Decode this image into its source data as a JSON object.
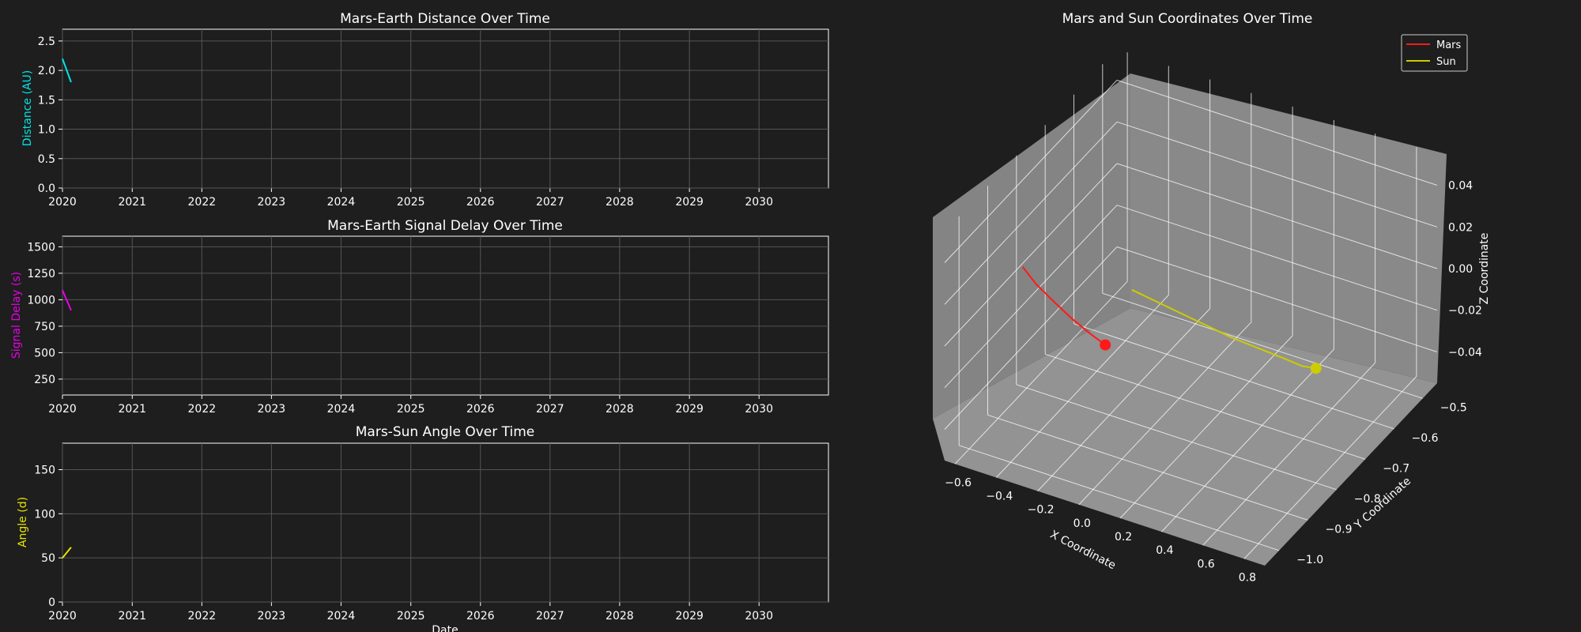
{
  "theme": {
    "background": "#1e1e1e",
    "foreground": "#ffffff",
    "grid": "#555555",
    "pane_color": "#8a8a8a"
  },
  "chart_data": [
    {
      "type": "line",
      "title": "Mars-Earth Distance Over Time",
      "xlabel": "",
      "ylabel": "Distance (AU)",
      "ylabel_color": "#00e5e5",
      "xlim": [
        "2020-01-01",
        "2030-12-31"
      ],
      "ylim": [
        0,
        2.7
      ],
      "xticks": [
        "2020",
        "2021",
        "2022",
        "2023",
        "2024",
        "2025",
        "2026",
        "2027",
        "2028",
        "2029",
        "2030"
      ],
      "yticks": [
        "0.0",
        "0.5",
        "1.0",
        "1.5",
        "2.0",
        "2.5"
      ],
      "grid": true,
      "series": [
        {
          "color": "#00e5e5",
          "x": [
            "2020-01-01",
            "2020-02-15"
          ],
          "y": [
            2.2,
            1.8
          ]
        }
      ]
    },
    {
      "type": "line",
      "title": "Mars-Earth Signal Delay Over Time",
      "xlabel": "",
      "ylabel": "Signal Delay (s)",
      "ylabel_color": "#e800e8",
      "xlim": [
        "2020-01-01",
        "2030-12-31"
      ],
      "ylim": [
        100,
        1600
      ],
      "xticks": [
        "2020",
        "2021",
        "2022",
        "2023",
        "2024",
        "2025",
        "2026",
        "2027",
        "2028",
        "2029",
        "2030"
      ],
      "yticks": [
        "250",
        "500",
        "750",
        "1000",
        "1250",
        "1500"
      ],
      "grid": true,
      "series": [
        {
          "color": "#e800e8",
          "x": [
            "2020-01-01",
            "2020-02-15"
          ],
          "y": [
            1090,
            900
          ]
        }
      ]
    },
    {
      "type": "line",
      "title": "Mars-Sun Angle Over Time",
      "xlabel": "Date",
      "ylabel": "Angle (d)",
      "ylabel_color": "#e5e500",
      "xlim": [
        "2020-01-01",
        "2030-12-31"
      ],
      "ylim": [
        0,
        180
      ],
      "xticks": [
        "2020",
        "2021",
        "2022",
        "2023",
        "2024",
        "2025",
        "2026",
        "2027",
        "2028",
        "2029",
        "2030"
      ],
      "yticks": [
        "0",
        "50",
        "100",
        "150"
      ],
      "grid": true,
      "series": [
        {
          "color": "#e5e500",
          "x": [
            "2020-01-01",
            "2020-02-15"
          ],
          "y": [
            50,
            62
          ]
        }
      ]
    },
    {
      "type": "line3d",
      "title": "Mars and Sun Coordinates Over Time",
      "xlabel": "X Coordinate",
      "ylabel": "Y Coordinate",
      "zlabel": "Z Coordinate",
      "xlim": [
        -0.65,
        0.9
      ],
      "ylim": [
        -1.05,
        -0.45
      ],
      "zlim": [
        -0.055,
        0.055
      ],
      "xticks": [
        "−0.6",
        "−0.4",
        "−0.2",
        "0.0",
        "0.2",
        "0.4",
        "0.6",
        "0.8"
      ],
      "yticks": [
        "−0.5",
        "−0.6",
        "−0.7",
        "−0.8",
        "−0.9",
        "−1.0"
      ],
      "zticks": [
        "0.04",
        "0.02",
        "0.00",
        "−0.02",
        "−0.04"
      ],
      "grid": true,
      "legend": {
        "placement": "top-right",
        "entries": [
          {
            "label": "Mars",
            "color": "#ff1a1a"
          },
          {
            "label": "Sun",
            "color": "#cccc00"
          }
        ]
      },
      "series": [
        {
          "name": "Mars",
          "color": "#ff1a1a",
          "x": [
            -0.55,
            -0.5,
            -0.42,
            -0.35,
            -0.28,
            -0.22
          ],
          "y": [
            -0.85,
            -0.84,
            -0.83,
            -0.82,
            -0.81,
            -0.8
          ],
          "z": [
            0.012,
            0.004,
            -0.004,
            -0.011,
            -0.017,
            -0.022
          ],
          "endpoint_marker": true
        },
        {
          "name": "Sun",
          "color": "#cccc00",
          "x": [
            -0.3,
            -0.15,
            0.0,
            0.15,
            0.3,
            0.45,
            0.6,
            0.72,
            0.8
          ],
          "y": [
            -0.65,
            -0.67,
            -0.69,
            -0.71,
            -0.73,
            -0.75,
            -0.77,
            -0.79,
            -0.8
          ],
          "z": [
            -0.02,
            -0.018,
            -0.016,
            -0.014,
            -0.012,
            -0.009,
            -0.006,
            -0.003,
            0.0
          ],
          "endpoint_marker": true
        }
      ]
    }
  ]
}
